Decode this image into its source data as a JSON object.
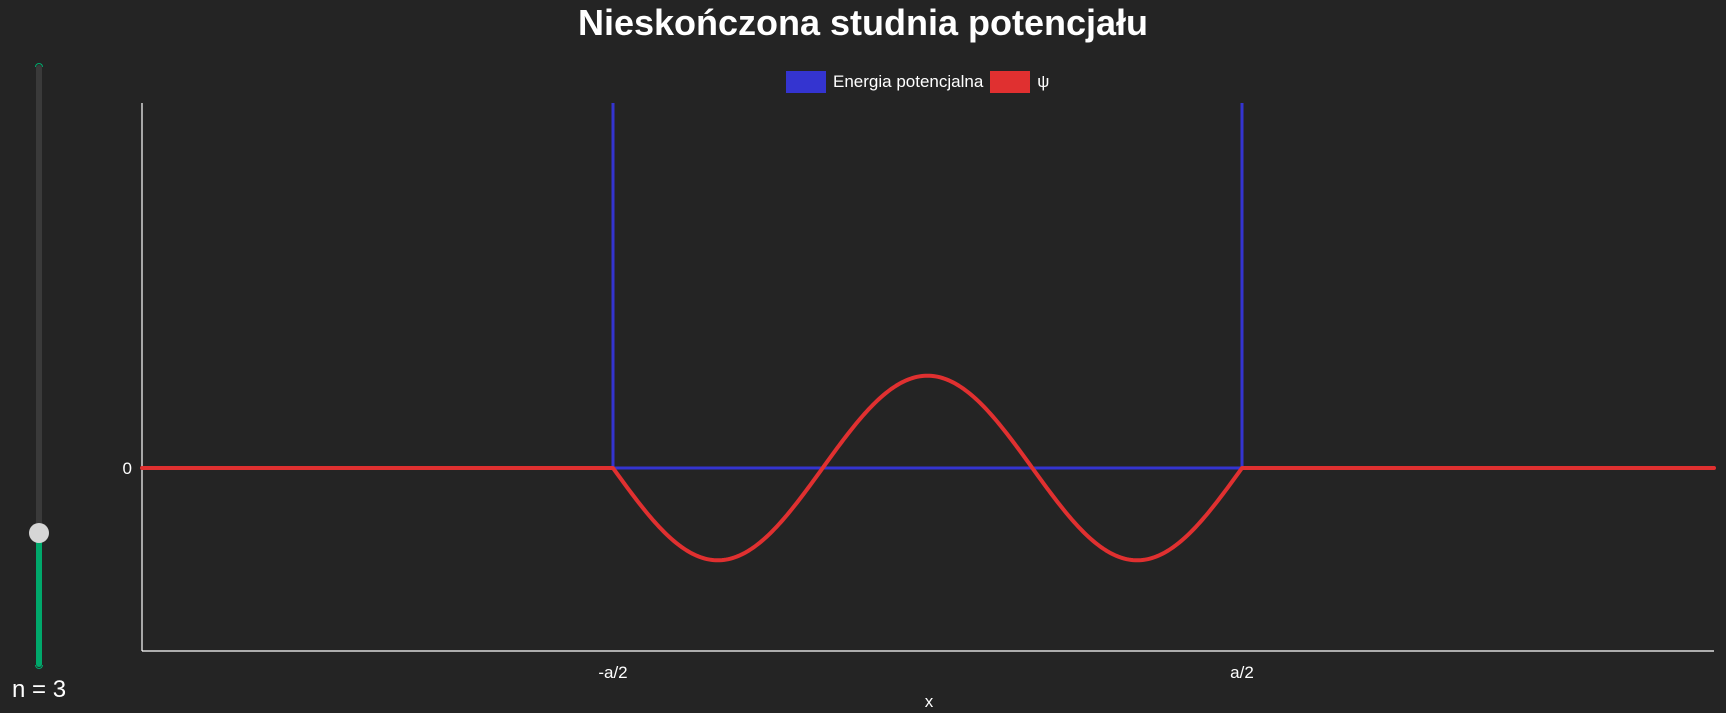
{
  "title": "Nieskończona studnia potencjału",
  "slider": {
    "label": "n = 3",
    "min": 1,
    "max": 10,
    "value": 3,
    "fill_color": "#00a86b"
  },
  "chart_data": {
    "type": "line",
    "title": "Nieskończona studnia potencjału",
    "xlabel": "x",
    "ylabel": "",
    "xlim": [
      -1.5,
      1.0
    ],
    "ylim": [
      -1.0,
      1.0
    ],
    "x_ticks": [
      {
        "value": -0.5,
        "label": "-a/2"
      },
      {
        "value": 0.5,
        "label": "a/2"
      }
    ],
    "y_ticks": [
      {
        "value": 0,
        "label": "0"
      }
    ],
    "legend_position": "top-center",
    "series": [
      {
        "name": "Energia potencjalna",
        "color": "#3434d0",
        "kind": "infinite-well",
        "well_left": -0.5,
        "well_right": 0.5,
        "floor": 0
      },
      {
        "name": "ψ",
        "color": "#e03030",
        "kind": "wavefunction",
        "n": 3,
        "amplitude": 0.71,
        "formula": "psi(x) = A*cos(n*pi*x) for |x|<a/2, else 0"
      }
    ]
  }
}
